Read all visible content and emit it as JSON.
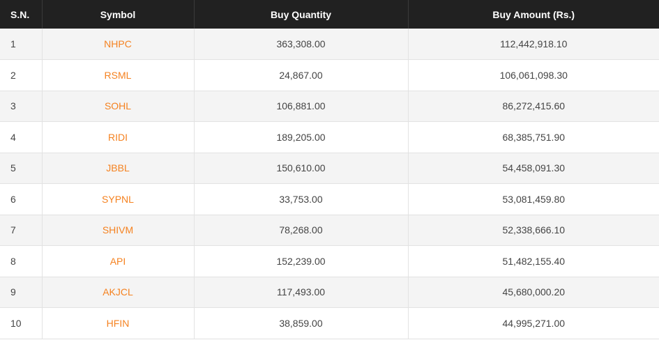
{
  "colors": {
    "header_bg": "#212121",
    "header_text": "#ffffff",
    "symbol_link": "#f58220",
    "row_alt": "#f4f4f4"
  },
  "table": {
    "headers": {
      "sn": "S.N.",
      "symbol": "Symbol",
      "buy_quantity": "Buy Quantity",
      "buy_amount": "Buy Amount (Rs.)"
    },
    "rows": [
      {
        "sn": "1",
        "symbol": "NHPC",
        "buy_quantity": "363,308.00",
        "buy_amount": "112,442,918.10"
      },
      {
        "sn": "2",
        "symbol": "RSML",
        "buy_quantity": "24,867.00",
        "buy_amount": "106,061,098.30"
      },
      {
        "sn": "3",
        "symbol": "SOHL",
        "buy_quantity": "106,881.00",
        "buy_amount": "86,272,415.60"
      },
      {
        "sn": "4",
        "symbol": "RIDI",
        "buy_quantity": "189,205.00",
        "buy_amount": "68,385,751.90"
      },
      {
        "sn": "5",
        "symbol": "JBBL",
        "buy_quantity": "150,610.00",
        "buy_amount": "54,458,091.30"
      },
      {
        "sn": "6",
        "symbol": "SYPNL",
        "buy_quantity": "33,753.00",
        "buy_amount": "53,081,459.80"
      },
      {
        "sn": "7",
        "symbol": "SHIVM",
        "buy_quantity": "78,268.00",
        "buy_amount": "52,338,666.10"
      },
      {
        "sn": "8",
        "symbol": "API",
        "buy_quantity": "152,239.00",
        "buy_amount": "51,482,155.40"
      },
      {
        "sn": "9",
        "symbol": "AKJCL",
        "buy_quantity": "117,493.00",
        "buy_amount": "45,680,000.20"
      },
      {
        "sn": "10",
        "symbol": "HFIN",
        "buy_quantity": "38,859.00",
        "buy_amount": "44,995,271.00"
      }
    ]
  }
}
